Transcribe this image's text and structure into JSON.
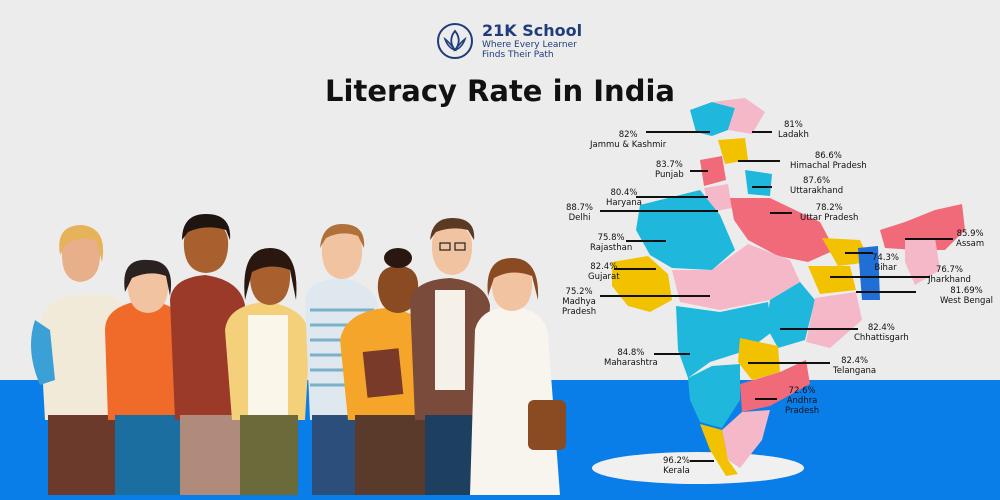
{
  "brand": {
    "name": "21K School",
    "tagline_line1": "Where Every Learner",
    "tagline_line2": "Finds Their Path"
  },
  "title": "Literacy Rate in India",
  "colors": {
    "background": "#ececec",
    "band": "#0a7ee8",
    "brand": "#1f3d7a",
    "map_cyan": "#1fb8dc",
    "map_pink": "#f5b8c8",
    "map_red": "#f06a7a",
    "map_yellow": "#f2c200"
  },
  "states": [
    {
      "name": "Ladakh",
      "rate": "81%"
    },
    {
      "name": "Jammu & Kashmir",
      "rate": "82%"
    },
    {
      "name": "Himachal Pradesh",
      "rate": "86.6%"
    },
    {
      "name": "Punjab",
      "rate": "83.7%"
    },
    {
      "name": "Uttarakhand",
      "rate": "87.6%"
    },
    {
      "name": "Haryana",
      "rate": "80.4%"
    },
    {
      "name": "Delhi",
      "rate": "88.7%"
    },
    {
      "name": "Uttar Pradesh",
      "rate": "78.2%"
    },
    {
      "name": "Assam",
      "rate": "85.9%"
    },
    {
      "name": "Rajasthan",
      "rate": "75.8%"
    },
    {
      "name": "Bihar",
      "rate": "74.3%"
    },
    {
      "name": "Gujarat",
      "rate": "82.4%"
    },
    {
      "name": "Jharkhand",
      "rate": "76.7%"
    },
    {
      "name": "Madhya Pradesh",
      "rate": "75.2%"
    },
    {
      "name": "West Bengal",
      "rate": "81.69%"
    },
    {
      "name": "Chhattisgarh",
      "rate": "82.4%"
    },
    {
      "name": "Maharashtra",
      "rate": "84.8%"
    },
    {
      "name": "Telangana",
      "rate": "82.4%"
    },
    {
      "name": "Andhra Pradesh",
      "rate": "72.6%"
    },
    {
      "name": "Kerala",
      "rate": "96.2%"
    }
  ]
}
